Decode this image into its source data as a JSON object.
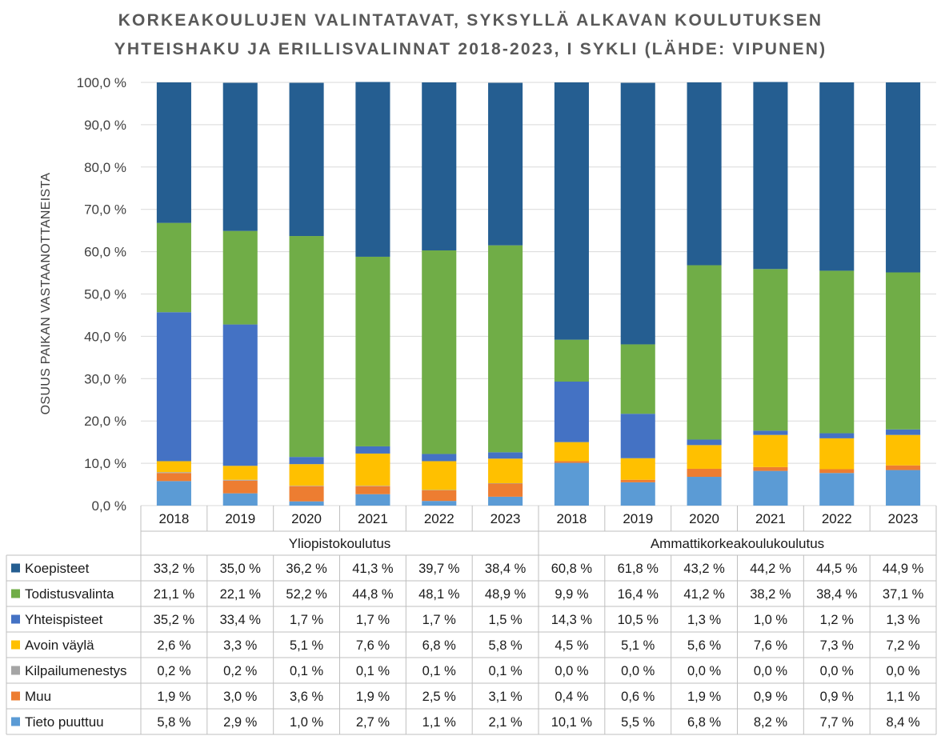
{
  "chart_data": {
    "type": "bar",
    "stacked": true,
    "title_line1": "KORKEAKOULUJEN VALINTATAVAT, SYKSYLLÄ ALKAVAN KOULUTUKSEN",
    "title_line2": "YHTEISHAKU JA ERILLISVALINNAT 2018-2023, I SYKLI (LÄHDE: VIPUNEN)",
    "ylabel": "OSUUS PAIKAN VASTAANOTTANEISTA",
    "ylim": [
      0,
      100
    ],
    "yticks": [
      "0,0 %",
      "10,0 %",
      "20,0 %",
      "30,0 %",
      "40,0 %",
      "50,0 %",
      "60,0 %",
      "70,0 %",
      "80,0 %",
      "90,0 %",
      "100,0 %"
    ],
    "groups": [
      {
        "label": "Yliopistokoulutus",
        "years": [
          "2018",
          "2019",
          "2020",
          "2021",
          "2022",
          "2023"
        ]
      },
      {
        "label": "Ammattikorkeakoulukoulutus",
        "years": [
          "2018",
          "2019",
          "2020",
          "2021",
          "2022",
          "2023"
        ]
      }
    ],
    "series": [
      {
        "name": "Koepisteet",
        "color": "#255E91",
        "values": [
          33.2,
          35.0,
          36.2,
          41.3,
          39.7,
          38.4,
          60.8,
          61.8,
          43.2,
          44.2,
          44.5,
          44.9
        ],
        "labels": [
          "33,2 %",
          "35,0 %",
          "36,2 %",
          "41,3 %",
          "39,7 %",
          "38,4 %",
          "60,8 %",
          "61,8 %",
          "43,2 %",
          "44,2 %",
          "44,5 %",
          "44,9 %"
        ]
      },
      {
        "name": "Todistusvalinta",
        "color": "#70AD47",
        "values": [
          21.1,
          22.1,
          52.2,
          44.8,
          48.1,
          48.9,
          9.9,
          16.4,
          41.2,
          38.2,
          38.4,
          37.1
        ],
        "labels": [
          "21,1 %",
          "22,1 %",
          "52,2 %",
          "44,8 %",
          "48,1 %",
          "48,9 %",
          "9,9 %",
          "16,4 %",
          "41,2 %",
          "38,2 %",
          "38,4 %",
          "37,1 %"
        ]
      },
      {
        "name": "Yhteispisteet",
        "color": "#4472C4",
        "values": [
          35.2,
          33.4,
          1.7,
          1.7,
          1.7,
          1.5,
          14.3,
          10.5,
          1.3,
          1.0,
          1.2,
          1.3
        ],
        "labels": [
          "35,2 %",
          "33,4 %",
          "1,7 %",
          "1,7 %",
          "1,7 %",
          "1,5 %",
          "14,3 %",
          "10,5 %",
          "1,3 %",
          "1,0 %",
          "1,2 %",
          "1,3 %"
        ]
      },
      {
        "name": "Avoin väylä",
        "color": "#FFC000",
        "values": [
          2.6,
          3.3,
          5.1,
          7.6,
          6.8,
          5.8,
          4.5,
          5.1,
          5.6,
          7.6,
          7.3,
          7.2
        ],
        "labels": [
          "2,6 %",
          "3,3 %",
          "5,1 %",
          "7,6 %",
          "6,8 %",
          "5,8 %",
          "4,5 %",
          "5,1 %",
          "5,6 %",
          "7,6 %",
          "7,3 %",
          "7,2 %"
        ]
      },
      {
        "name": "Kilpailumenestys",
        "color": "#A5A5A5",
        "values": [
          0.2,
          0.2,
          0.1,
          0.1,
          0.1,
          0.1,
          0.0,
          0.0,
          0.0,
          0.0,
          0.0,
          0.0
        ],
        "labels": [
          "0,2 %",
          "0,2 %",
          "0,1 %",
          "0,1 %",
          "0,1 %",
          "0,1 %",
          "0,0 %",
          "0,0 %",
          "0,0 %",
          "0,0 %",
          "0,0 %",
          "0,0 %"
        ]
      },
      {
        "name": "Muu",
        "color": "#ED7D31",
        "values": [
          1.9,
          3.0,
          3.6,
          1.9,
          2.5,
          3.1,
          0.4,
          0.6,
          1.9,
          0.9,
          0.9,
          1.1
        ],
        "labels": [
          "1,9 %",
          "3,0 %",
          "3,6 %",
          "1,9 %",
          "2,5 %",
          "3,1 %",
          "0,4 %",
          "0,6 %",
          "1,9 %",
          "0,9 %",
          "0,9 %",
          "1,1 %"
        ]
      },
      {
        "name": "Tieto puuttuu",
        "color": "#5B9BD5",
        "values": [
          5.8,
          2.9,
          1.0,
          2.7,
          1.1,
          2.1,
          10.1,
          5.5,
          6.8,
          8.2,
          7.7,
          8.4
        ],
        "labels": [
          "5,8 %",
          "2,9 %",
          "1,0 %",
          "2,7 %",
          "1,1 %",
          "2,1 %",
          "10,1 %",
          "5,5 %",
          "6,8 %",
          "8,2 %",
          "7,7 %",
          "8,4 %"
        ]
      }
    ],
    "stack_order": [
      "Tieto puuttuu",
      "Muu",
      "Kilpailumenestys",
      "Avoin väylä",
      "Yhteispisteet",
      "Todistusvalinta",
      "Koepisteet"
    ],
    "grid": true,
    "legend": "data-table"
  }
}
